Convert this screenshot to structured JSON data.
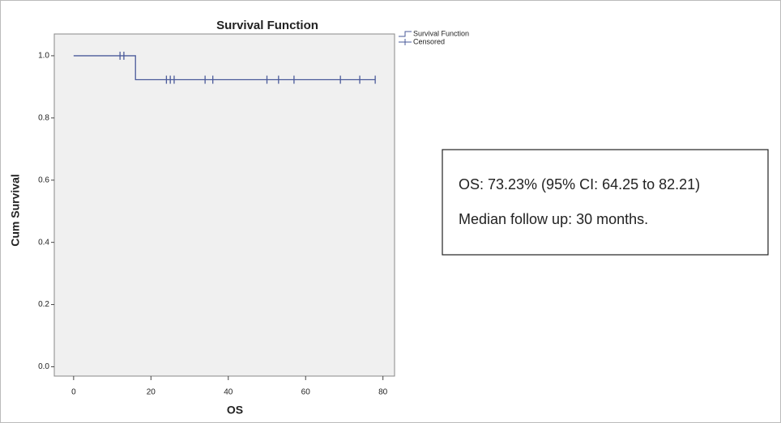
{
  "chart_data": {
    "type": "step",
    "title": "Survival Function",
    "xlabel": "OS",
    "ylabel": "Cum Survival",
    "xlim": [
      -5,
      83
    ],
    "xticks": [
      0,
      20,
      40,
      60,
      80
    ],
    "ylim": [
      -0.03,
      1.07
    ],
    "yticks": [
      {
        "value": 0,
        "label": "0.0"
      },
      0.2,
      0.4,
      0.6,
      0.8,
      {
        "value": 1,
        "label": "1.0"
      }
    ],
    "series": [
      {
        "name": "Survival Function",
        "color": "#4a5a9a",
        "marker": "step",
        "x": [
          0,
          16,
          78
        ],
        "values": [
          1,
          0.923,
          0.923
        ]
      },
      {
        "name": "Censored",
        "color": "#4a5a9a",
        "marker": "plus",
        "x": [
          12,
          13,
          24,
          25,
          26,
          34,
          36,
          50,
          53,
          57,
          69,
          74,
          78
        ],
        "values": [
          1,
          1,
          0.923,
          0.923,
          0.923,
          0.923,
          0.923,
          0.923,
          0.923,
          0.923,
          0.923,
          0.923,
          0.923
        ]
      }
    ],
    "annotations": [
      "OS: 73.23% (95% CI: 64.25 to 82.21)",
      "Median follow up: 30 months."
    ]
  }
}
